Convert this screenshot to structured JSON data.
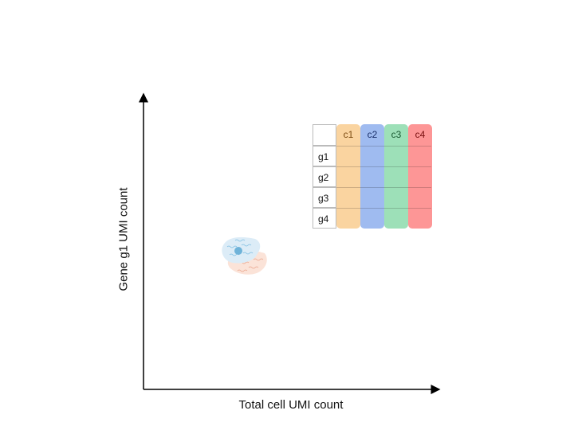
{
  "axes": {
    "x_label": "Total cell UMI count",
    "y_label": "Gene g1 UMI count"
  },
  "matrix": {
    "columns": [
      {
        "label": "c1",
        "color": "#fad4a0",
        "text_color": "#7a4a10"
      },
      {
        "label": "c2",
        "color": "#9fbbf0",
        "text_color": "#1a2f6a"
      },
      {
        "label": "c3",
        "color": "#9de0b8",
        "text_color": "#1a5a32"
      },
      {
        "label": "c4",
        "color": "#fd9696",
        "text_color": "#7a1010"
      }
    ],
    "rows": [
      "g1",
      "g2",
      "g3",
      "g4"
    ]
  },
  "icon": "cell-icon"
}
